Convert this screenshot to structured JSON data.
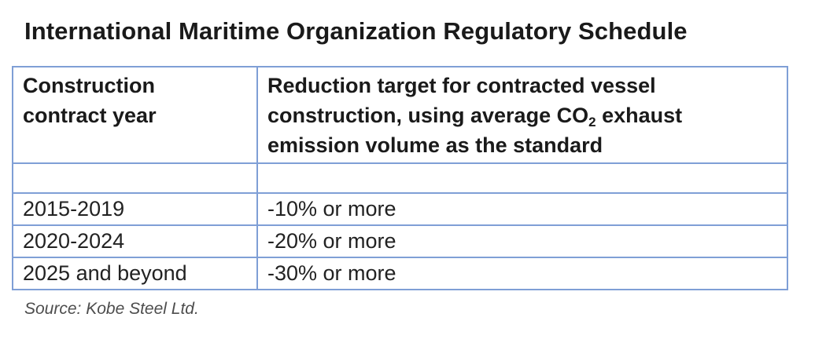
{
  "title": "International Maritime Organization Regulatory Schedule",
  "table": {
    "headers": {
      "col1_line1": "Construction",
      "col1_line2": "contract year",
      "col2_line1": "Reduction target for contracted vessel",
      "col2_line2_a": "construction, using average CO",
      "col2_line2_sub": "2",
      "col2_line2_b": " exhaust",
      "col2_line3": "emission volume as the standard"
    },
    "rows": [
      {
        "year": "",
        "target": ""
      },
      {
        "year": "2015-2019",
        "target": "-10% or more"
      },
      {
        "year": "2020-2024",
        "target": "-20% or more"
      },
      {
        "year": "2025 and beyond",
        "target": "-30% or more"
      }
    ]
  },
  "source": "Source: Kobe Steel Ltd.",
  "colors": {
    "border": "#7f9fd6",
    "text": "#1e1e1e",
    "source_text": "#4d4d4d"
  }
}
